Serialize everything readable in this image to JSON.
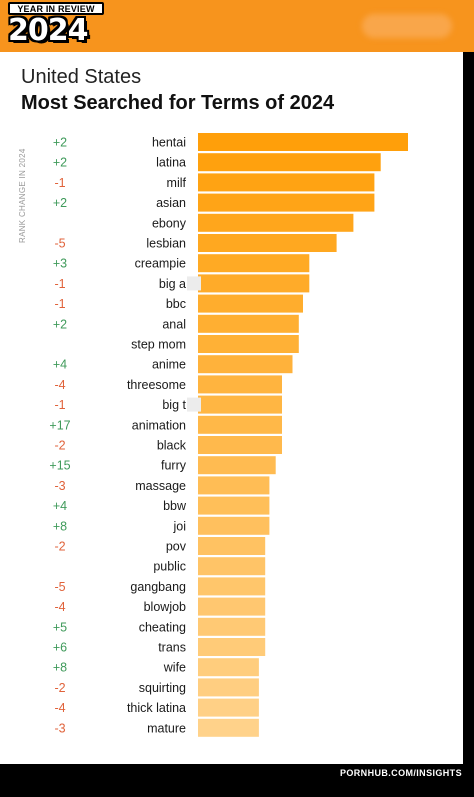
{
  "header": {
    "badge_top": "YEAR IN REVIEW",
    "badge_year": "2024"
  },
  "subtitle": "United States",
  "title": "Most Searched for Terms of 2024",
  "rank_change_label": "RANK CHANGE IN 2024",
  "footer": "PORNHUB.COM/INSIGHTS",
  "colors": {
    "header_bg": "#f7941d",
    "bar_top": "#ff9f0a",
    "bar_bottom": "#ffd28a",
    "rank_up": "#3f9a5a",
    "rank_down": "#e0623a"
  },
  "chart_data": {
    "type": "bar",
    "orientation": "horizontal",
    "title": "Most Searched for Terms of 2024",
    "subtitle": "United States",
    "value_axis": "none",
    "values_note": "bars unlabeled; lengths given as fraction of the longest bar",
    "categories": [
      "hentai",
      "latina",
      "milf",
      "asian",
      "ebony",
      "lesbian",
      "creampie",
      "big a",
      "bbc",
      "anal",
      "step mom",
      "anime",
      "threesome",
      "big t",
      "animation",
      "black",
      "furry",
      "massage",
      "bbw",
      "joi",
      "pov",
      "public",
      "gangbang",
      "blowjob",
      "cheating",
      "trans",
      "wife",
      "squirting",
      "thick latina",
      "mature"
    ],
    "values": [
      1.0,
      0.87,
      0.84,
      0.84,
      0.74,
      0.66,
      0.53,
      0.53,
      0.5,
      0.48,
      0.48,
      0.45,
      0.4,
      0.4,
      0.4,
      0.4,
      0.37,
      0.34,
      0.34,
      0.34,
      0.32,
      0.32,
      0.32,
      0.32,
      0.32,
      0.32,
      0.29,
      0.29,
      0.29,
      0.29
    ],
    "rank_change": [
      "+2",
      "+2",
      "-1",
      "+2",
      "",
      "-5",
      "+3",
      "-1",
      "-1",
      "+2",
      "",
      "+4",
      "-4",
      "-1",
      "+17",
      "-2",
      "+15",
      "-3",
      "+4",
      "+8",
      "-2",
      "",
      "-5",
      "-4",
      "+5",
      "+6",
      "+8",
      "-2",
      "-4",
      "-3"
    ],
    "redacted": [
      false,
      false,
      false,
      false,
      false,
      false,
      false,
      true,
      false,
      false,
      false,
      false,
      false,
      true,
      false,
      false,
      false,
      false,
      false,
      false,
      false,
      false,
      false,
      false,
      false,
      false,
      false,
      false,
      false,
      false
    ]
  }
}
